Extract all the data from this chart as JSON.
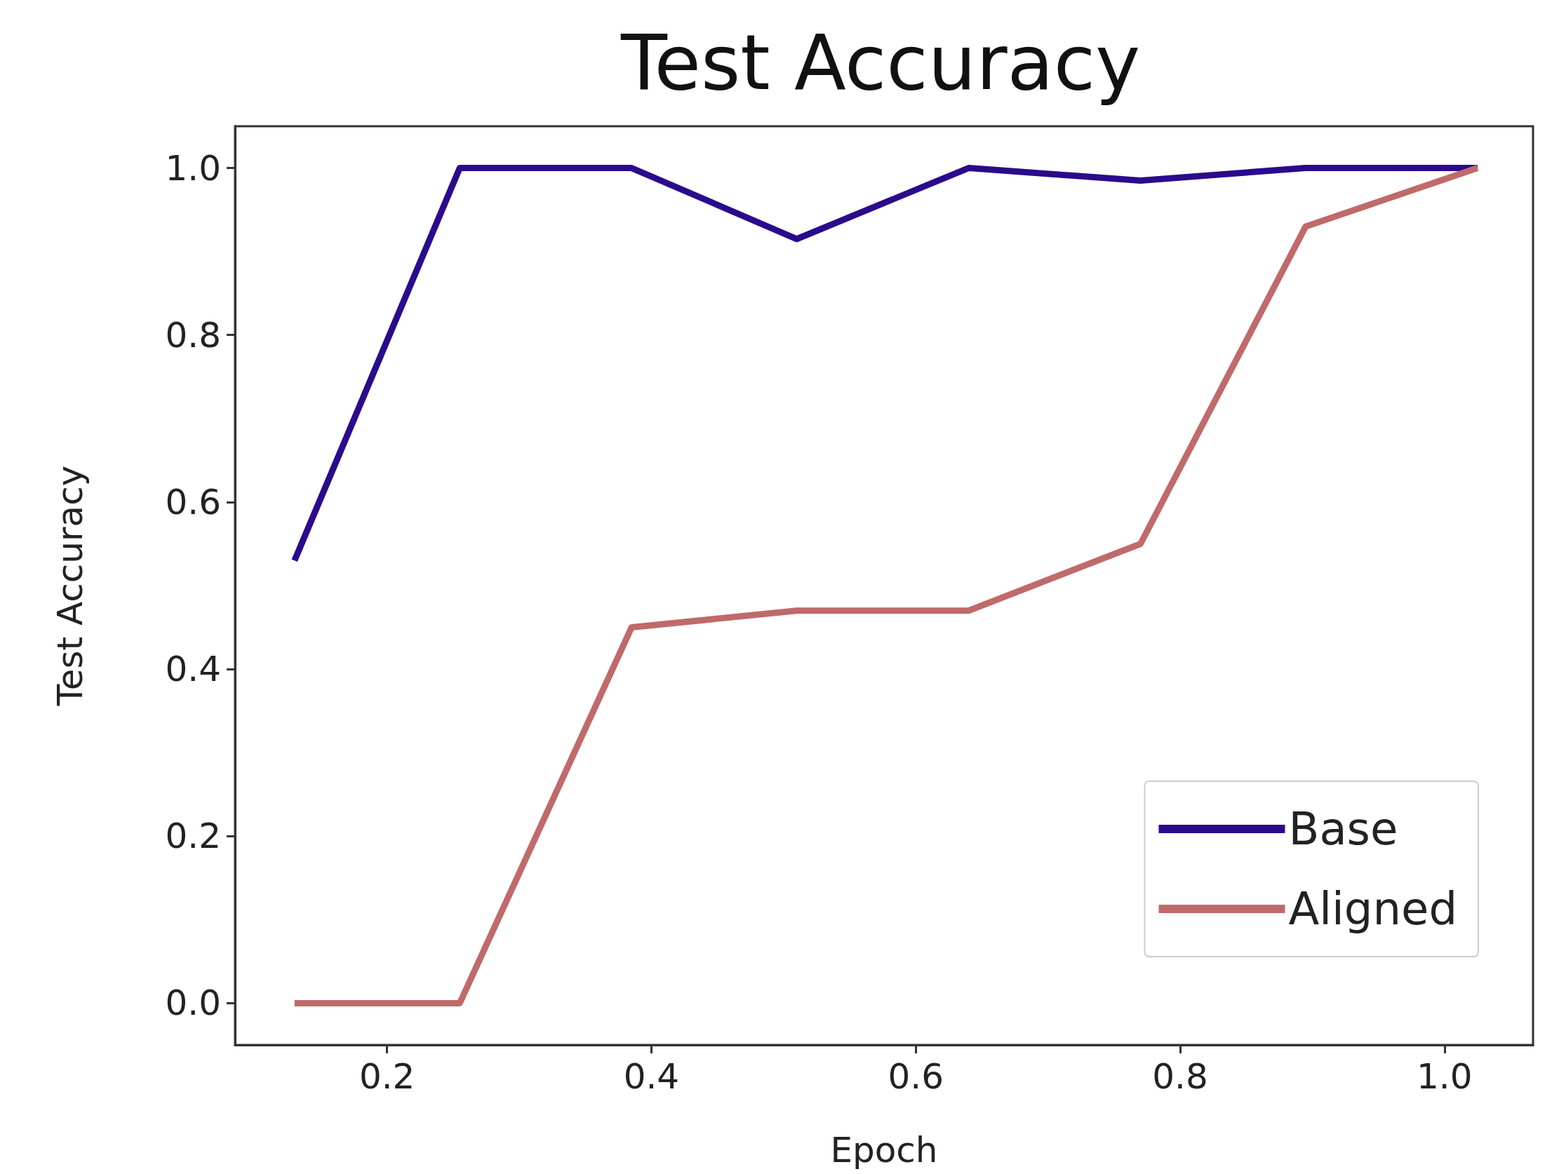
{
  "chart_data": {
    "type": "line",
    "title": "Test Accuracy",
    "xlabel": "Epoch",
    "ylabel": "Test Accuracy",
    "x": [
      0.13,
      0.255,
      0.385,
      0.51,
      0.64,
      0.77,
      0.895,
      1.025
    ],
    "series": [
      {
        "name": "Base",
        "color": "#2b0a8c",
        "values": [
          0.53,
          1.0,
          1.0,
          0.915,
          1.0,
          0.985,
          1.0,
          1.0
        ]
      },
      {
        "name": "Aligned",
        "color": "#c06a6a",
        "values": [
          0.0,
          0.0,
          0.45,
          0.47,
          0.47,
          0.55,
          0.93,
          1.0
        ]
      }
    ],
    "xlim": [
      0.085,
      1.067
    ],
    "xticks": [
      0.2,
      0.4,
      0.6,
      0.8,
      {
        "value": 1,
        "label": "1.0"
      }
    ],
    "ylim": [
      -0.05,
      1.05
    ],
    "yticks": [
      {
        "value": 0,
        "label": "0.0"
      },
      0.2,
      0.4,
      0.6,
      0.8,
      {
        "value": 1,
        "label": "1.0"
      }
    ],
    "legend": "bottom right",
    "grid": false,
    "marker": "none",
    "line_style": "solid"
  }
}
